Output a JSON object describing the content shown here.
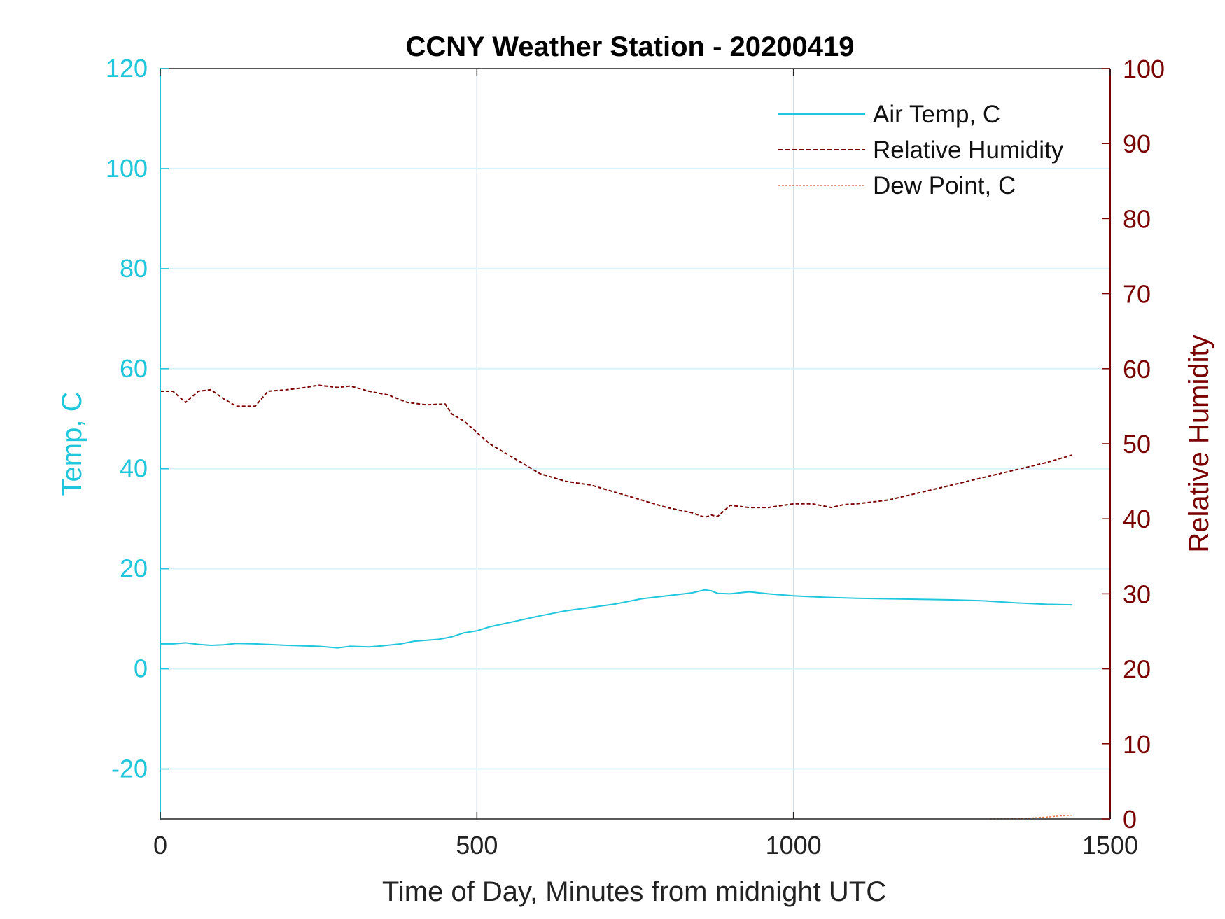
{
  "chart_data": {
    "type": "line",
    "title": "CCNY Weather Station - 20200419",
    "xlabel": "Time of Day, Minutes from midnight UTC",
    "ylabel_left": "Temp, C",
    "ylabel_right": "Relative Humidity",
    "xlim": [
      0,
      1500
    ],
    "ylim_left": [
      -30,
      120
    ],
    "ylim_right": [
      0,
      100
    ],
    "xticks": [
      "0",
      "500",
      "1000",
      "1500"
    ],
    "xtick_values": [
      0,
      500,
      1000,
      1500
    ],
    "yticks_left": [
      "-20",
      "0",
      "20",
      "40",
      "60",
      "80",
      "100",
      "120"
    ],
    "ytick_values_left": [
      -20,
      0,
      20,
      40,
      60,
      80,
      100,
      120
    ],
    "yticks_right": [
      "0",
      "10",
      "20",
      "30",
      "40",
      "50",
      "60",
      "70",
      "80",
      "90",
      "100"
    ],
    "ytick_values_right": [
      0,
      10,
      20,
      30,
      40,
      50,
      60,
      70,
      80,
      90,
      100
    ],
    "grid": true,
    "legend_position": "top-right",
    "colors": {
      "temp": "#1fc6dc",
      "humidity": "#7a0000",
      "dewpoint": "#e07a50",
      "grid_x": "#d3dbe3",
      "grid_y": "#d8f4fa",
      "axis_black": "#222222"
    },
    "series": [
      {
        "name": "Air Temp, C",
        "axis": "left",
        "style": "solid",
        "x": [
          0,
          20,
          40,
          60,
          80,
          100,
          120,
          150,
          200,
          250,
          280,
          300,
          330,
          350,
          380,
          400,
          440,
          460,
          480,
          500,
          520,
          560,
          600,
          640,
          680,
          720,
          760,
          800,
          840,
          860,
          870,
          880,
          900,
          930,
          960,
          1000,
          1050,
          1100,
          1150,
          1200,
          1250,
          1300,
          1350,
          1400,
          1440
        ],
        "y": [
          5.0,
          5.0,
          5.2,
          4.9,
          4.7,
          4.8,
          5.1,
          5.0,
          4.7,
          4.5,
          4.2,
          4.5,
          4.4,
          4.6,
          5.0,
          5.5,
          5.9,
          6.4,
          7.2,
          7.6,
          8.4,
          9.5,
          10.6,
          11.6,
          12.3,
          13.0,
          14.0,
          14.6,
          15.2,
          15.8,
          15.6,
          15.1,
          15.0,
          15.4,
          15.0,
          14.6,
          14.3,
          14.1,
          14.0,
          13.9,
          13.8,
          13.6,
          13.2,
          12.9,
          12.8
        ]
      },
      {
        "name": "Relative Humidity",
        "axis": "right",
        "style": "dashed",
        "x": [
          0,
          20,
          40,
          60,
          80,
          100,
          120,
          150,
          170,
          200,
          230,
          250,
          280,
          300,
          330,
          360,
          390,
          420,
          450,
          460,
          480,
          500,
          520,
          550,
          580,
          600,
          640,
          680,
          720,
          760,
          800,
          840,
          860,
          870,
          880,
          900,
          930,
          960,
          1000,
          1030,
          1060,
          1080,
          1100,
          1150,
          1200,
          1250,
          1300,
          1350,
          1400,
          1440
        ],
        "y": [
          57.0,
          57.0,
          55.5,
          57.0,
          57.2,
          56.0,
          55.0,
          55.0,
          57.0,
          57.2,
          57.5,
          57.8,
          57.5,
          57.7,
          57.0,
          56.5,
          55.5,
          55.2,
          55.3,
          54.0,
          53.0,
          51.5,
          50.0,
          48.5,
          47.0,
          46.0,
          45.0,
          44.5,
          43.5,
          42.5,
          41.5,
          40.8,
          40.2,
          40.5,
          40.3,
          41.8,
          41.5,
          41.5,
          42.0,
          42.0,
          41.5,
          41.9,
          42.0,
          42.5,
          43.5,
          44.5,
          45.5,
          46.5,
          47.5,
          48.5
        ]
      },
      {
        "name": "Dew Point, C",
        "axis": "right",
        "style": "dashed",
        "x": [
          1310,
          1340,
          1370,
          1400,
          1420,
          1440
        ],
        "y": [
          0.0,
          0.05,
          0.1,
          0.25,
          0.4,
          0.5
        ]
      }
    ]
  }
}
